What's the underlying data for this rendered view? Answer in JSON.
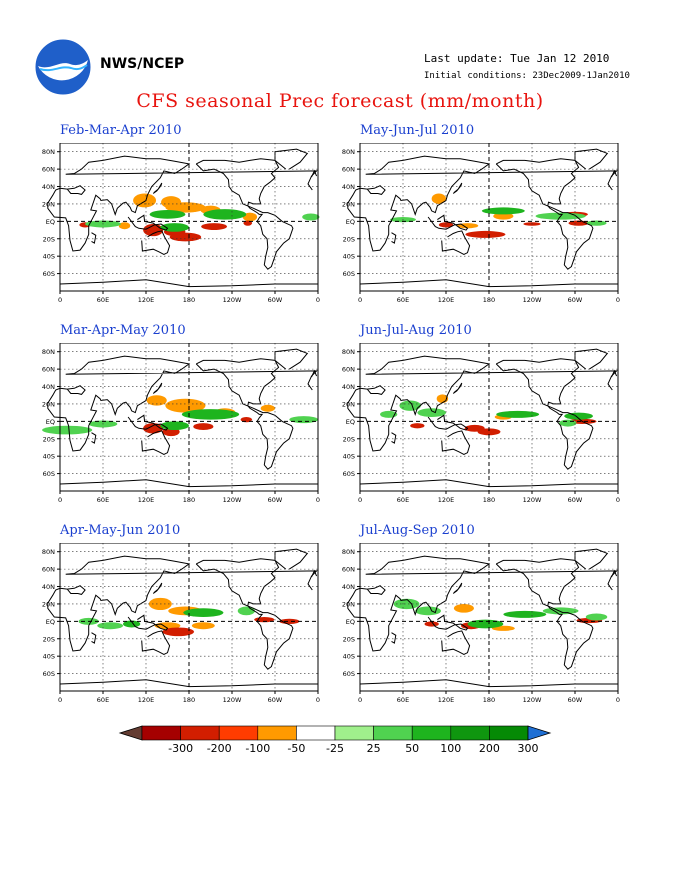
{
  "header": {
    "org": "NWS/NCEP",
    "last_update": "Last update: Tue Jan 12 2010",
    "initial_conditions": "Initial conditions: 23Dec2009-1Jan2010",
    "title": "CFS seasonal Prec forecast (mm/month)"
  },
  "axes": {
    "lat_labels": [
      "80N",
      "60N",
      "40N",
      "20N",
      "EQ",
      "20S",
      "40S",
      "60S"
    ],
    "lon_labels": [
      "0",
      "60E",
      "120E",
      "180",
      "120W",
      "60W",
      "0"
    ]
  },
  "panels": [
    {
      "title": "Feb-Mar-Apr 2010"
    },
    {
      "title": "May-Jun-Jul 2010"
    },
    {
      "title": "Mar-Apr-May 2010"
    },
    {
      "title": "Jun-Jul-Aug 2010"
    },
    {
      "title": "Apr-May-Jun 2010"
    },
    {
      "title": "Jul-Aug-Sep 2010"
    }
  ],
  "legend": {
    "labels": [
      "-300",
      "-200",
      "-100",
      "-50",
      "-25",
      "25",
      "50",
      "100",
      "200",
      "300"
    ],
    "colors": [
      "#643c32",
      "#a50000",
      "#d21e00",
      "#ff3c00",
      "#ff9a00",
      "#ffffff",
      "#a0f08c",
      "#50d250",
      "#1eb41e",
      "#0f960f",
      "#058a05",
      "#1f6fd4"
    ]
  },
  "colors": {
    "title": "#e8140f",
    "panel_title": "#1a3fcf",
    "dry_strong": "#d21e00",
    "dry": "#ff9a00",
    "wet": "#50d250",
    "wet_strong": "#1eb41e"
  }
}
